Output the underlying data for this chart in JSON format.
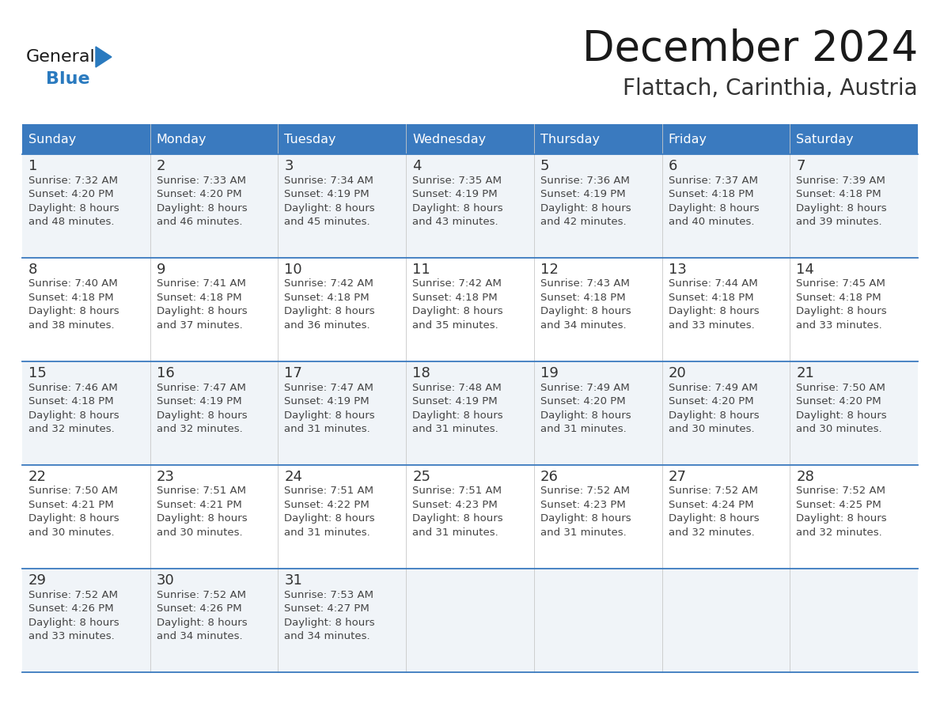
{
  "title": "December 2024",
  "subtitle": "Flattach, Carinthia, Austria",
  "days_of_week": [
    "Sunday",
    "Monday",
    "Tuesday",
    "Wednesday",
    "Thursday",
    "Friday",
    "Saturday"
  ],
  "header_bg_color": "#3a7abf",
  "header_text_color": "#ffffff",
  "cell_bg_color_odd": "#f0f4f8",
  "cell_bg_color_even": "#ffffff",
  "border_color": "#3a7abf",
  "day_number_color": "#333333",
  "cell_text_color": "#444444",
  "title_color": "#1a1a1a",
  "subtitle_color": "#333333",
  "logo_color_general": "#1a1a1a",
  "logo_color_blue": "#2a7abf",
  "logo_triangle_color": "#2a7abf",
  "weeks": [
    [
      {
        "day": 1,
        "sunrise": "7:32 AM",
        "sunset": "4:20 PM",
        "daylight_h": "8 hours",
        "daylight_m": "48 minutes."
      },
      {
        "day": 2,
        "sunrise": "7:33 AM",
        "sunset": "4:20 PM",
        "daylight_h": "8 hours",
        "daylight_m": "46 minutes."
      },
      {
        "day": 3,
        "sunrise": "7:34 AM",
        "sunset": "4:19 PM",
        "daylight_h": "8 hours",
        "daylight_m": "45 minutes."
      },
      {
        "day": 4,
        "sunrise": "7:35 AM",
        "sunset": "4:19 PM",
        "daylight_h": "8 hours",
        "daylight_m": "43 minutes."
      },
      {
        "day": 5,
        "sunrise": "7:36 AM",
        "sunset": "4:19 PM",
        "daylight_h": "8 hours",
        "daylight_m": "42 minutes."
      },
      {
        "day": 6,
        "sunrise": "7:37 AM",
        "sunset": "4:18 PM",
        "daylight_h": "8 hours",
        "daylight_m": "40 minutes."
      },
      {
        "day": 7,
        "sunrise": "7:39 AM",
        "sunset": "4:18 PM",
        "daylight_h": "8 hours",
        "daylight_m": "39 minutes."
      }
    ],
    [
      {
        "day": 8,
        "sunrise": "7:40 AM",
        "sunset": "4:18 PM",
        "daylight_h": "8 hours",
        "daylight_m": "38 minutes."
      },
      {
        "day": 9,
        "sunrise": "7:41 AM",
        "sunset": "4:18 PM",
        "daylight_h": "8 hours",
        "daylight_m": "37 minutes."
      },
      {
        "day": 10,
        "sunrise": "7:42 AM",
        "sunset": "4:18 PM",
        "daylight_h": "8 hours",
        "daylight_m": "36 minutes."
      },
      {
        "day": 11,
        "sunrise": "7:42 AM",
        "sunset": "4:18 PM",
        "daylight_h": "8 hours",
        "daylight_m": "35 minutes."
      },
      {
        "day": 12,
        "sunrise": "7:43 AM",
        "sunset": "4:18 PM",
        "daylight_h": "8 hours",
        "daylight_m": "34 minutes."
      },
      {
        "day": 13,
        "sunrise": "7:44 AM",
        "sunset": "4:18 PM",
        "daylight_h": "8 hours",
        "daylight_m": "33 minutes."
      },
      {
        "day": 14,
        "sunrise": "7:45 AM",
        "sunset": "4:18 PM",
        "daylight_h": "8 hours",
        "daylight_m": "33 minutes."
      }
    ],
    [
      {
        "day": 15,
        "sunrise": "7:46 AM",
        "sunset": "4:18 PM",
        "daylight_h": "8 hours",
        "daylight_m": "32 minutes."
      },
      {
        "day": 16,
        "sunrise": "7:47 AM",
        "sunset": "4:19 PM",
        "daylight_h": "8 hours",
        "daylight_m": "32 minutes."
      },
      {
        "day": 17,
        "sunrise": "7:47 AM",
        "sunset": "4:19 PM",
        "daylight_h": "8 hours",
        "daylight_m": "31 minutes."
      },
      {
        "day": 18,
        "sunrise": "7:48 AM",
        "sunset": "4:19 PM",
        "daylight_h": "8 hours",
        "daylight_m": "31 minutes."
      },
      {
        "day": 19,
        "sunrise": "7:49 AM",
        "sunset": "4:20 PM",
        "daylight_h": "8 hours",
        "daylight_m": "31 minutes."
      },
      {
        "day": 20,
        "sunrise": "7:49 AM",
        "sunset": "4:20 PM",
        "daylight_h": "8 hours",
        "daylight_m": "30 minutes."
      },
      {
        "day": 21,
        "sunrise": "7:50 AM",
        "sunset": "4:20 PM",
        "daylight_h": "8 hours",
        "daylight_m": "30 minutes."
      }
    ],
    [
      {
        "day": 22,
        "sunrise": "7:50 AM",
        "sunset": "4:21 PM",
        "daylight_h": "8 hours",
        "daylight_m": "30 minutes."
      },
      {
        "day": 23,
        "sunrise": "7:51 AM",
        "sunset": "4:21 PM",
        "daylight_h": "8 hours",
        "daylight_m": "30 minutes."
      },
      {
        "day": 24,
        "sunrise": "7:51 AM",
        "sunset": "4:22 PM",
        "daylight_h": "8 hours",
        "daylight_m": "31 minutes."
      },
      {
        "day": 25,
        "sunrise": "7:51 AM",
        "sunset": "4:23 PM",
        "daylight_h": "8 hours",
        "daylight_m": "31 minutes."
      },
      {
        "day": 26,
        "sunrise": "7:52 AM",
        "sunset": "4:23 PM",
        "daylight_h": "8 hours",
        "daylight_m": "31 minutes."
      },
      {
        "day": 27,
        "sunrise": "7:52 AM",
        "sunset": "4:24 PM",
        "daylight_h": "8 hours",
        "daylight_m": "32 minutes."
      },
      {
        "day": 28,
        "sunrise": "7:52 AM",
        "sunset": "4:25 PM",
        "daylight_h": "8 hours",
        "daylight_m": "32 minutes."
      }
    ],
    [
      {
        "day": 29,
        "sunrise": "7:52 AM",
        "sunset": "4:26 PM",
        "daylight_h": "8 hours",
        "daylight_m": "33 minutes."
      },
      {
        "day": 30,
        "sunrise": "7:52 AM",
        "sunset": "4:26 PM",
        "daylight_h": "8 hours",
        "daylight_m": "34 minutes."
      },
      {
        "day": 31,
        "sunrise": "7:53 AM",
        "sunset": "4:27 PM",
        "daylight_h": "8 hours",
        "daylight_m": "34 minutes."
      },
      null,
      null,
      null,
      null
    ]
  ]
}
